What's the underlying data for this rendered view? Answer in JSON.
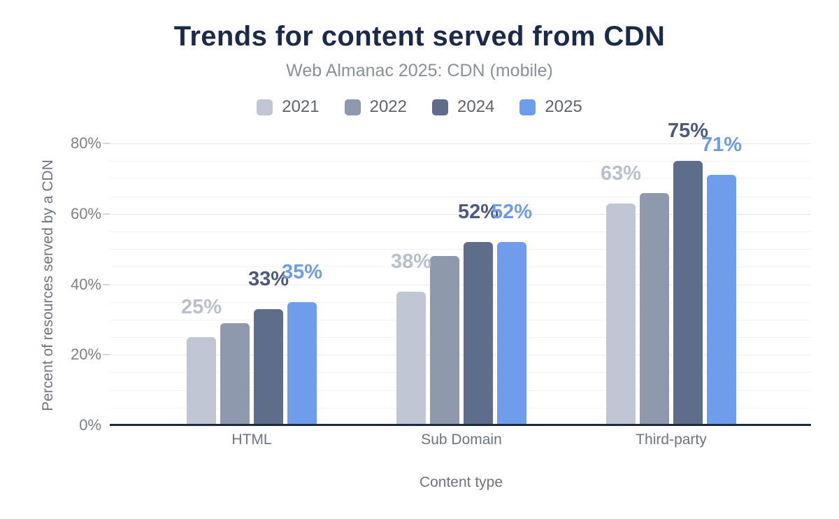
{
  "chart_data": {
    "type": "bar",
    "title": "Trends for content served from CDN",
    "subtitle": "Web Almanac 2025: CDN (mobile)",
    "xlabel": "Content type",
    "ylabel": "Percent of resources served by a CDN",
    "categories": [
      "HTML",
      "Sub Domain",
      "Third-party"
    ],
    "ylim": [
      0,
      80
    ],
    "ytick_interval": 20,
    "yticks": [
      {
        "value": 0,
        "label": "0%"
      },
      {
        "value": 20,
        "label": "20%"
      },
      {
        "value": 40,
        "label": "40%"
      },
      {
        "value": 60,
        "label": "60%"
      },
      {
        "value": 80,
        "label": "80%"
      }
    ],
    "minor_grid_interval": 5,
    "grid": "horizontal",
    "legend_position": "top",
    "series": [
      {
        "name": "2021",
        "color": "#c0c6d3",
        "label_color": "#b8bfcd",
        "values": [
          25,
          38,
          63
        ],
        "data_labels": [
          "25%",
          "38%",
          "63%"
        ],
        "labels_shown": true
      },
      {
        "name": "2022",
        "color": "#8e99ad",
        "label_color": "#8e99ad",
        "values": [
          29,
          48,
          66
        ],
        "data_labels": [
          "",
          "",
          ""
        ],
        "labels_shown": false
      },
      {
        "name": "2024",
        "color": "#5e6d89",
        "label_color": "#4c5b7b",
        "values": [
          33,
          52,
          75
        ],
        "data_labels": [
          "33%",
          "52%",
          "75%"
        ],
        "labels_shown": true
      },
      {
        "name": "2025",
        "color": "#6f9ceb",
        "label_color": "#6d9ceb",
        "values": [
          35,
          52,
          71
        ],
        "data_labels": [
          "35%",
          "52%",
          "71%"
        ],
        "labels_shown": true
      }
    ]
  },
  "colors": {
    "title": "#1b2a49",
    "subtitle": "#8a9099",
    "axis_line": "#1c2940",
    "tick_text": "#7b818c",
    "axis_title_text": "#6e7480",
    "legend_text": "#5f646c",
    "grid_major": "#e8ebef",
    "grid_minor": "#f3f4f7"
  }
}
